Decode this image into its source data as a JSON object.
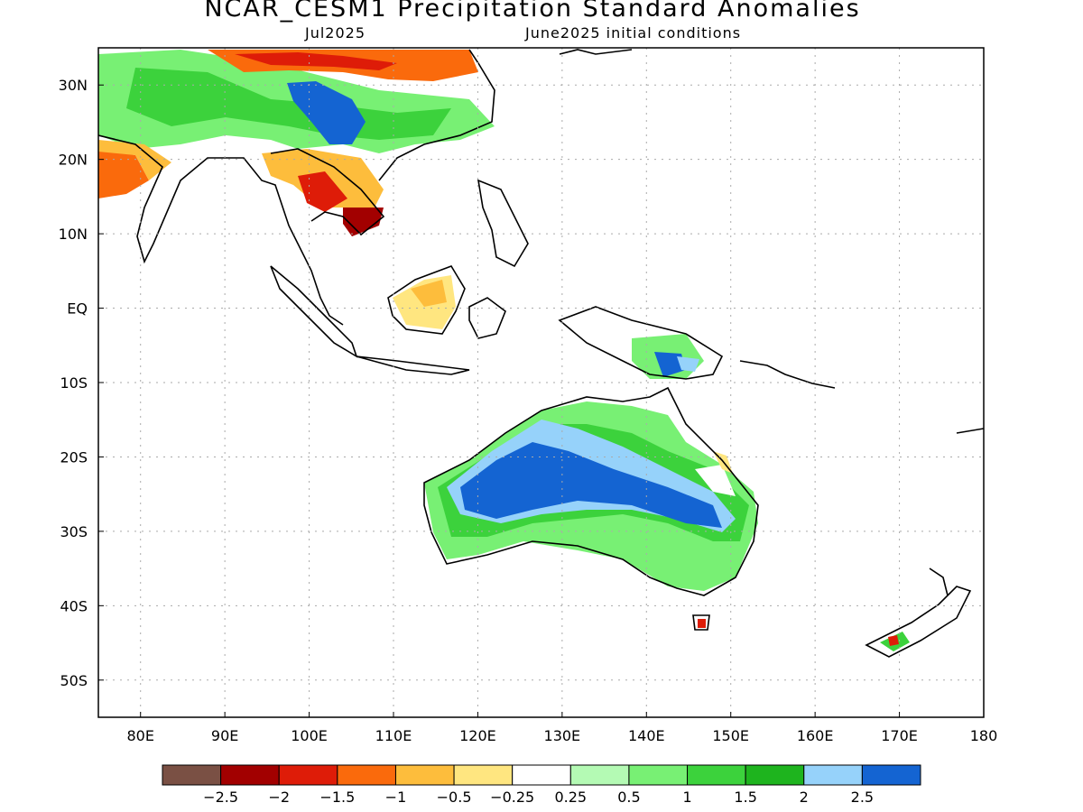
{
  "title": "NCAR_CESM1 Precipitation Standard Anomalies",
  "subtitle_left": "Jul2025",
  "subtitle_right": "June2025 initial conditions",
  "lon_ticks": [
    {
      "value": 80,
      "label": "80E"
    },
    {
      "value": 90,
      "label": "90E"
    },
    {
      "value": 100,
      "label": "100E"
    },
    {
      "value": 110,
      "label": "110E"
    },
    {
      "value": 120,
      "label": "120E"
    },
    {
      "value": 130,
      "label": "130E"
    },
    {
      "value": 140,
      "label": "140E"
    },
    {
      "value": 150,
      "label": "150E"
    },
    {
      "value": 160,
      "label": "160E"
    },
    {
      "value": 170,
      "label": "170E"
    },
    {
      "value": 180,
      "label": "180"
    }
  ],
  "lat_ticks": [
    {
      "value": 30,
      "label": "30N"
    },
    {
      "value": 20,
      "label": "20N"
    },
    {
      "value": 10,
      "label": "10N"
    },
    {
      "value": 0,
      "label": "EQ"
    },
    {
      "value": -10,
      "label": "10S"
    },
    {
      "value": -20,
      "label": "20S"
    },
    {
      "value": -30,
      "label": "30S"
    },
    {
      "value": -40,
      "label": "40S"
    },
    {
      "value": -50,
      "label": "50S"
    }
  ],
  "lon_range": [
    75,
    180
  ],
  "lat_range": [
    -55,
    35
  ],
  "grid": true,
  "colorbar": {
    "colors": [
      "#7a5044",
      "#a20000",
      "#de1c08",
      "#fa6a0c",
      "#fdbd3c",
      "#ffe680",
      "#ffffff",
      "#b4fab4",
      "#78f074",
      "#3cd23c",
      "#1eb41e",
      "#96d2fa",
      "#1464d2"
    ],
    "labels": [
      "−2.5",
      "−2",
      "−1.5",
      "−1",
      "−0.5",
      "−0.25",
      "0.25",
      "0.5",
      "1",
      "1.5",
      "2",
      "2.5"
    ]
  },
  "colors": {
    "water_land_bg": "#ffffff",
    "coast": "#000000",
    "grid": "#aaaaaa"
  }
}
